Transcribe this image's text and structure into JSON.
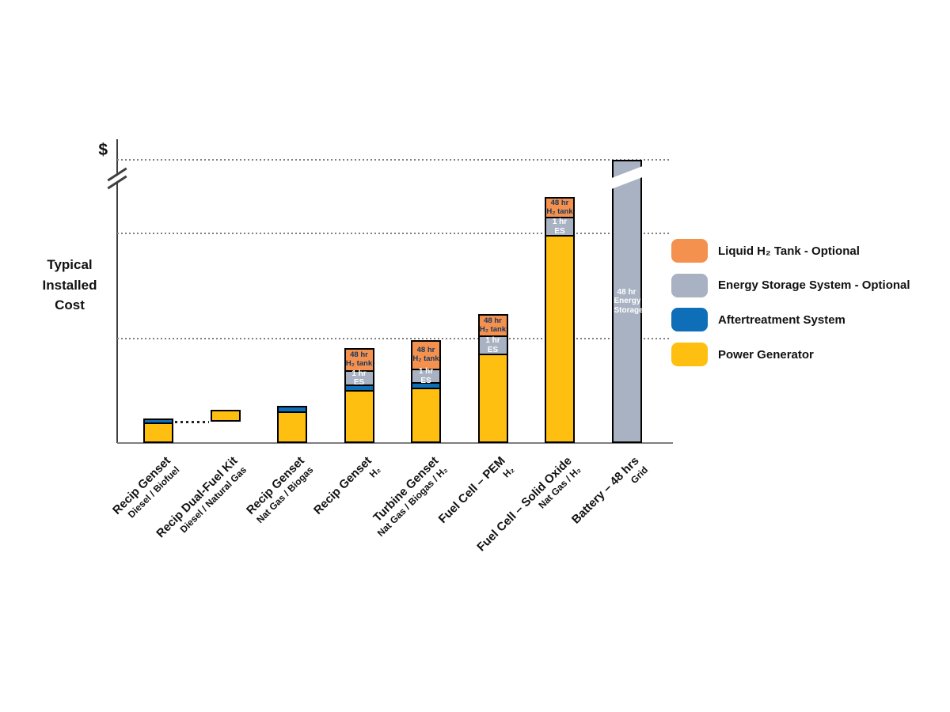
{
  "y_axis": {
    "symbol": "$",
    "title": "Typical\nInstalled\nCost"
  },
  "chart_data": {
    "type": "bar",
    "stacked": true,
    "orientation": "vertical",
    "value_axis": {
      "symbol": "$",
      "label": "Typical Installed Cost",
      "numeric_ticks": false,
      "units": "relative installed cost (axis unlabeled; values estimated in plot units, 0 = baseline, 385 = axis top)",
      "axis_break": true,
      "gridline_style": "dotted",
      "gridline_values": [
        132,
        265,
        358
      ]
    },
    "colors": {
      "power": "#FEBF10",
      "aftertreatment": "#0E6FB8",
      "energy_storage": "#A8B2C3",
      "h2_tank": "#F4914E",
      "segment_label_dark": "#17375E",
      "segment_label_light": "#FFFFFF",
      "axis": "#3F3F3F",
      "gridline": "#7F7F7F"
    },
    "legend": [
      {
        "key": "h2_tank",
        "label": "Liquid H₂ Tank - Optional"
      },
      {
        "key": "energy_storage",
        "label": "Energy Storage System - Optional"
      },
      {
        "key": "aftertreatment",
        "label": "Aftertreatment System"
      },
      {
        "key": "power",
        "label": "Power Generator"
      }
    ],
    "bars": [
      {
        "category": "Recip Genset",
        "fuel": "Diesel / Biofuel",
        "base": 0,
        "segments": [
          {
            "key": "power",
            "value": 26
          },
          {
            "key": "aftertreatment",
            "value": 7
          }
        ]
      },
      {
        "category": "Recip Dual-Fuel Kit",
        "fuel": "Diesel / Natural Gas",
        "base": 27,
        "segments": [
          {
            "key": "power",
            "value": 15
          }
        ]
      },
      {
        "category": "Recip Genset",
        "fuel": "Nat Gas / Biogas",
        "base": 0,
        "segments": [
          {
            "key": "power",
            "value": 40
          },
          {
            "key": "aftertreatment",
            "value": 9
          }
        ]
      },
      {
        "category": "Recip Genset",
        "fuel": "H₂",
        "base": 0,
        "segments": [
          {
            "key": "power",
            "value": 67
          },
          {
            "key": "aftertreatment",
            "value": 9
          },
          {
            "key": "energy_storage",
            "value": 20,
            "label": "1 hr ES"
          },
          {
            "key": "h2_tank",
            "value": 30,
            "label": "48 hr\nH₂ tank"
          }
        ]
      },
      {
        "category": "Turbine Genset",
        "fuel": "Nat Gas / Biogas / H₂",
        "base": 0,
        "segments": [
          {
            "key": "power",
            "value": 70
          },
          {
            "key": "aftertreatment",
            "value": 9
          },
          {
            "key": "energy_storage",
            "value": 19,
            "label": "1 hr ES"
          },
          {
            "key": "h2_tank",
            "value": 38,
            "label": "48 hr\nH₂ tank"
          }
        ]
      },
      {
        "category": "Fuel Cell – PEM",
        "fuel": "H₂",
        "base": 0,
        "segments": [
          {
            "key": "power",
            "value": 113
          },
          {
            "key": "energy_storage",
            "value": 25,
            "label": "1 hr ES"
          },
          {
            "key": "h2_tank",
            "value": 29,
            "label": "48 hr\nH₂ tank"
          }
        ]
      },
      {
        "category": "Fuel Cell – Solid Oxide",
        "fuel": "Nat Gas / H₂",
        "base": 0,
        "segments": [
          {
            "key": "power",
            "value": 263
          },
          {
            "key": "energy_storage",
            "value": 25,
            "label": "1 hr ES"
          },
          {
            "key": "h2_tank",
            "value": 27,
            "label": "48 hr\nH₂ tank"
          }
        ]
      },
      {
        "category": "Battery – 48 hrs",
        "fuel": "Grid",
        "base": 0,
        "axis_break": true,
        "segments": [
          {
            "key": "energy_storage",
            "value": 358,
            "label": "48 hr Energy Storage"
          }
        ]
      }
    ],
    "annotations": [
      {
        "type": "dotted_connector",
        "from_bar_index": 0,
        "to_bar_index": 1
      }
    ]
  }
}
